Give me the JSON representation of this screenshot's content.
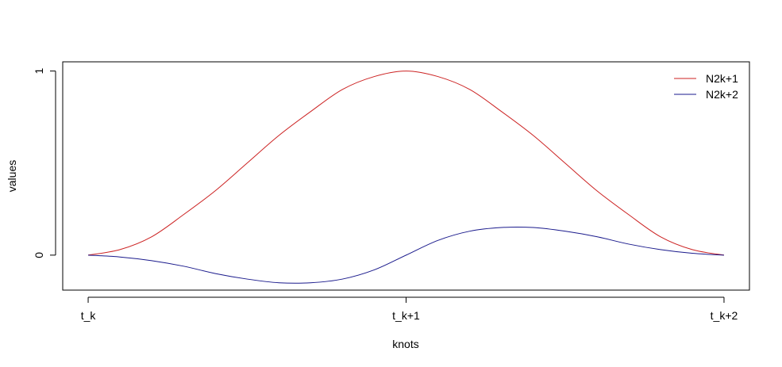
{
  "chart_data": {
    "type": "line",
    "title": "",
    "xlabel": "knots",
    "ylabel": "values",
    "x_ticks": [
      {
        "value": 0,
        "label": "t_k"
      },
      {
        "value": 1,
        "label": "t_k+1"
      },
      {
        "value": 2,
        "label": "t_k+2"
      }
    ],
    "y_ticks": [
      {
        "value": 0,
        "label": "0"
      },
      {
        "value": 1,
        "label": "1"
      }
    ],
    "xlim": [
      -0.08,
      2.08
    ],
    "ylim": [
      -0.19,
      1.05
    ],
    "grid": false,
    "legend_position": "top-right",
    "series": [
      {
        "name": "N2k+1",
        "color": "#cc2222",
        "x": [
          0,
          0.1,
          0.2,
          0.3,
          0.4,
          0.5,
          0.6,
          0.7,
          0.8,
          0.9,
          1.0,
          1.1,
          1.2,
          1.3,
          1.4,
          1.5,
          1.6,
          1.7,
          1.8,
          1.9,
          2.0
        ],
        "y": [
          0,
          0.03,
          0.1,
          0.22,
          0.35,
          0.5,
          0.65,
          0.78,
          0.9,
          0.97,
          1.0,
          0.97,
          0.9,
          0.78,
          0.65,
          0.5,
          0.35,
          0.22,
          0.1,
          0.03,
          0
        ]
      },
      {
        "name": "N2k+2",
        "color": "#1a1a8c",
        "x": [
          0,
          0.1,
          0.2,
          0.3,
          0.4,
          0.5,
          0.6,
          0.7,
          0.8,
          0.9,
          1.0,
          1.1,
          1.2,
          1.3,
          1.4,
          1.5,
          1.6,
          1.7,
          1.8,
          1.9,
          2.0
        ],
        "y": [
          0,
          -0.01,
          -0.03,
          -0.06,
          -0.1,
          -0.13,
          -0.15,
          -0.15,
          -0.13,
          -0.08,
          0,
          0.08,
          0.13,
          0.15,
          0.15,
          0.13,
          0.1,
          0.06,
          0.03,
          0.01,
          0
        ]
      }
    ]
  }
}
